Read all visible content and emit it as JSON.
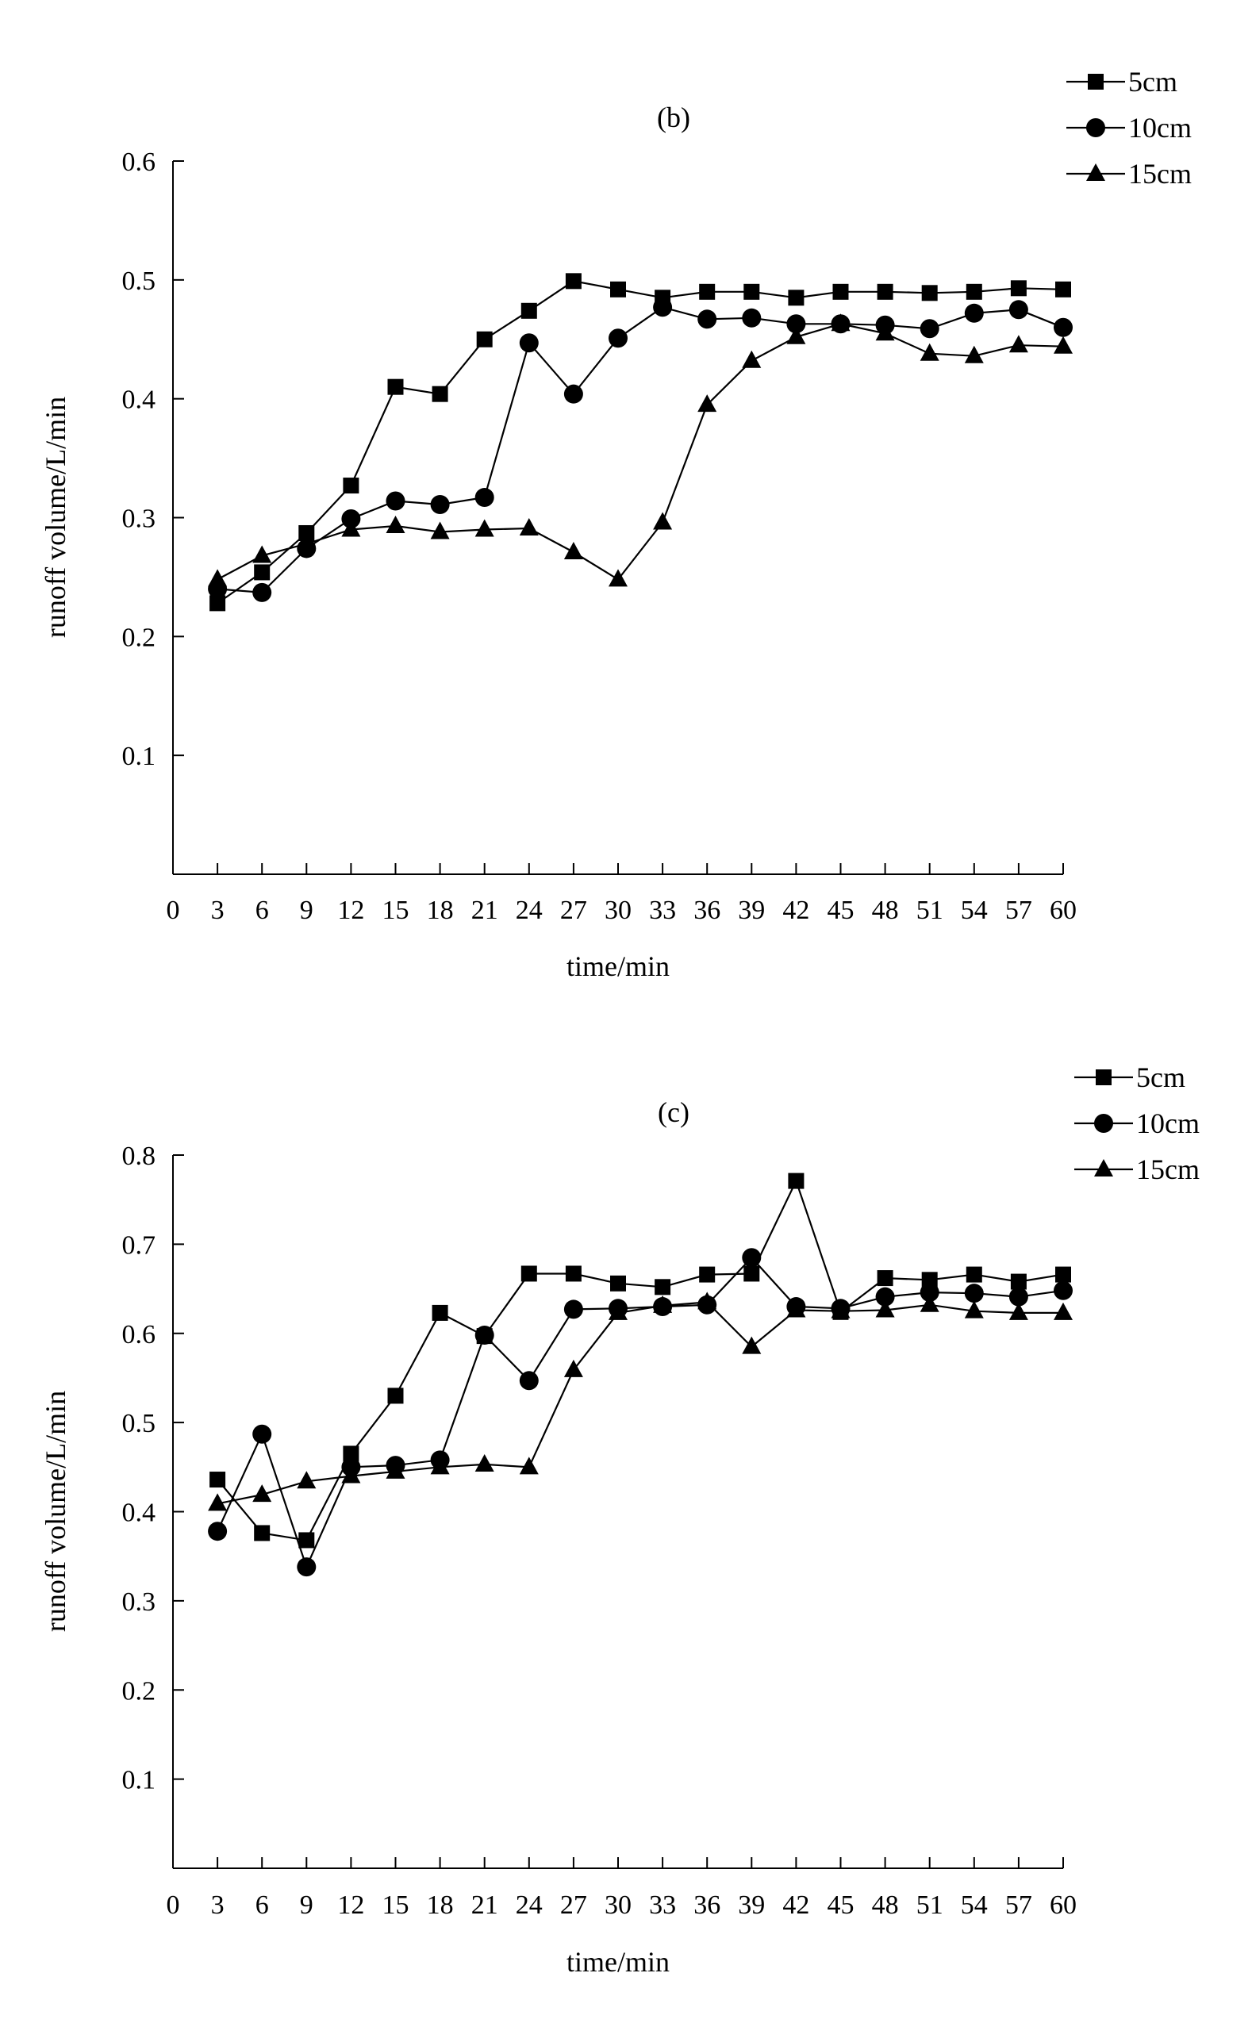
{
  "chart_data": [
    {
      "type": "line",
      "title": "(b)",
      "xlabel": "time/min",
      "ylabel": "runoff volume/L/min",
      "xlim": [
        0,
        60
      ],
      "ylim": [
        0,
        0.6
      ],
      "x_ticks": [
        0,
        3,
        6,
        9,
        12,
        15,
        18,
        21,
        24,
        27,
        30,
        33,
        36,
        39,
        42,
        45,
        48,
        51,
        54,
        57,
        60
      ],
      "y_ticks": [
        0.1,
        0.2,
        0.3,
        0.4,
        0.5,
        0.6
      ],
      "y_tick_labels": [
        "0.1",
        "0.2",
        "0.3",
        "0.4",
        "0.5",
        "0.6"
      ],
      "legend_position": "top-right",
      "x": [
        3,
        6,
        9,
        12,
        15,
        18,
        21,
        24,
        27,
        30,
        33,
        36,
        39,
        42,
        45,
        48,
        51,
        54,
        57,
        60
      ],
      "series": [
        {
          "name": "5cm",
          "marker": "square",
          "values": [
            0.228,
            0.254,
            0.287,
            0.327,
            0.41,
            0.404,
            0.45,
            0.474,
            0.499,
            0.492,
            0.485,
            0.49,
            0.49,
            0.485,
            0.49,
            0.49,
            0.489,
            0.49,
            0.493,
            0.492
          ]
        },
        {
          "name": "10cm",
          "marker": "circle",
          "values": [
            0.24,
            0.237,
            0.274,
            0.299,
            0.314,
            0.311,
            0.317,
            0.447,
            0.404,
            0.451,
            0.477,
            0.467,
            0.468,
            0.463,
            0.463,
            0.462,
            0.459,
            0.472,
            0.475,
            0.46
          ]
        },
        {
          "name": "15cm",
          "marker": "triangle",
          "values": [
            0.248,
            0.268,
            0.278,
            0.29,
            0.293,
            0.288,
            0.29,
            0.291,
            0.271,
            0.248,
            0.296,
            0.395,
            0.432,
            0.452,
            0.463,
            0.455,
            0.438,
            0.436,
            0.445,
            0.444
          ]
        }
      ]
    },
    {
      "type": "line",
      "title": "(c)",
      "xlabel": "time/min",
      "ylabel": "runoff volume/L/min",
      "xlim": [
        0,
        60
      ],
      "ylim": [
        0,
        0.8
      ],
      "x_ticks": [
        0,
        3,
        6,
        9,
        12,
        15,
        18,
        21,
        24,
        27,
        30,
        33,
        36,
        39,
        42,
        45,
        48,
        51,
        54,
        57,
        60
      ],
      "y_ticks": [
        0.1,
        0.2,
        0.3,
        0.4,
        0.5,
        0.6,
        0.7,
        0.8
      ],
      "y_tick_labels": [
        "0.1",
        "0.2",
        "0.3",
        "0.4",
        "0.5",
        "0.6",
        "0.7",
        "0.8"
      ],
      "legend_position": "top-right",
      "x": [
        3,
        6,
        9,
        12,
        15,
        18,
        21,
        24,
        27,
        30,
        33,
        36,
        39,
        42,
        45,
        48,
        51,
        54,
        57,
        60
      ],
      "series": [
        {
          "name": "5cm",
          "marker": "square",
          "values": [
            0.436,
            0.376,
            0.368,
            0.465,
            0.53,
            0.623,
            0.597,
            0.667,
            0.667,
            0.656,
            0.652,
            0.666,
            0.667,
            0.771,
            0.624,
            0.662,
            0.66,
            0.666,
            0.658,
            0.666
          ]
        },
        {
          "name": "10cm",
          "marker": "circle",
          "values": [
            0.378,
            0.487,
            0.338,
            0.45,
            0.452,
            0.458,
            0.598,
            0.547,
            0.627,
            0.628,
            0.63,
            0.632,
            0.685,
            0.63,
            0.628,
            0.641,
            0.646,
            0.645,
            0.641,
            0.648
          ]
        },
        {
          "name": "15cm",
          "marker": "triangle",
          "values": [
            0.409,
            0.419,
            0.434,
            0.44,
            0.445,
            0.45,
            0.453,
            0.45,
            0.559,
            0.623,
            0.631,
            0.635,
            0.585,
            0.626,
            0.625,
            0.626,
            0.632,
            0.625,
            0.623,
            0.623
          ]
        }
      ]
    }
  ]
}
